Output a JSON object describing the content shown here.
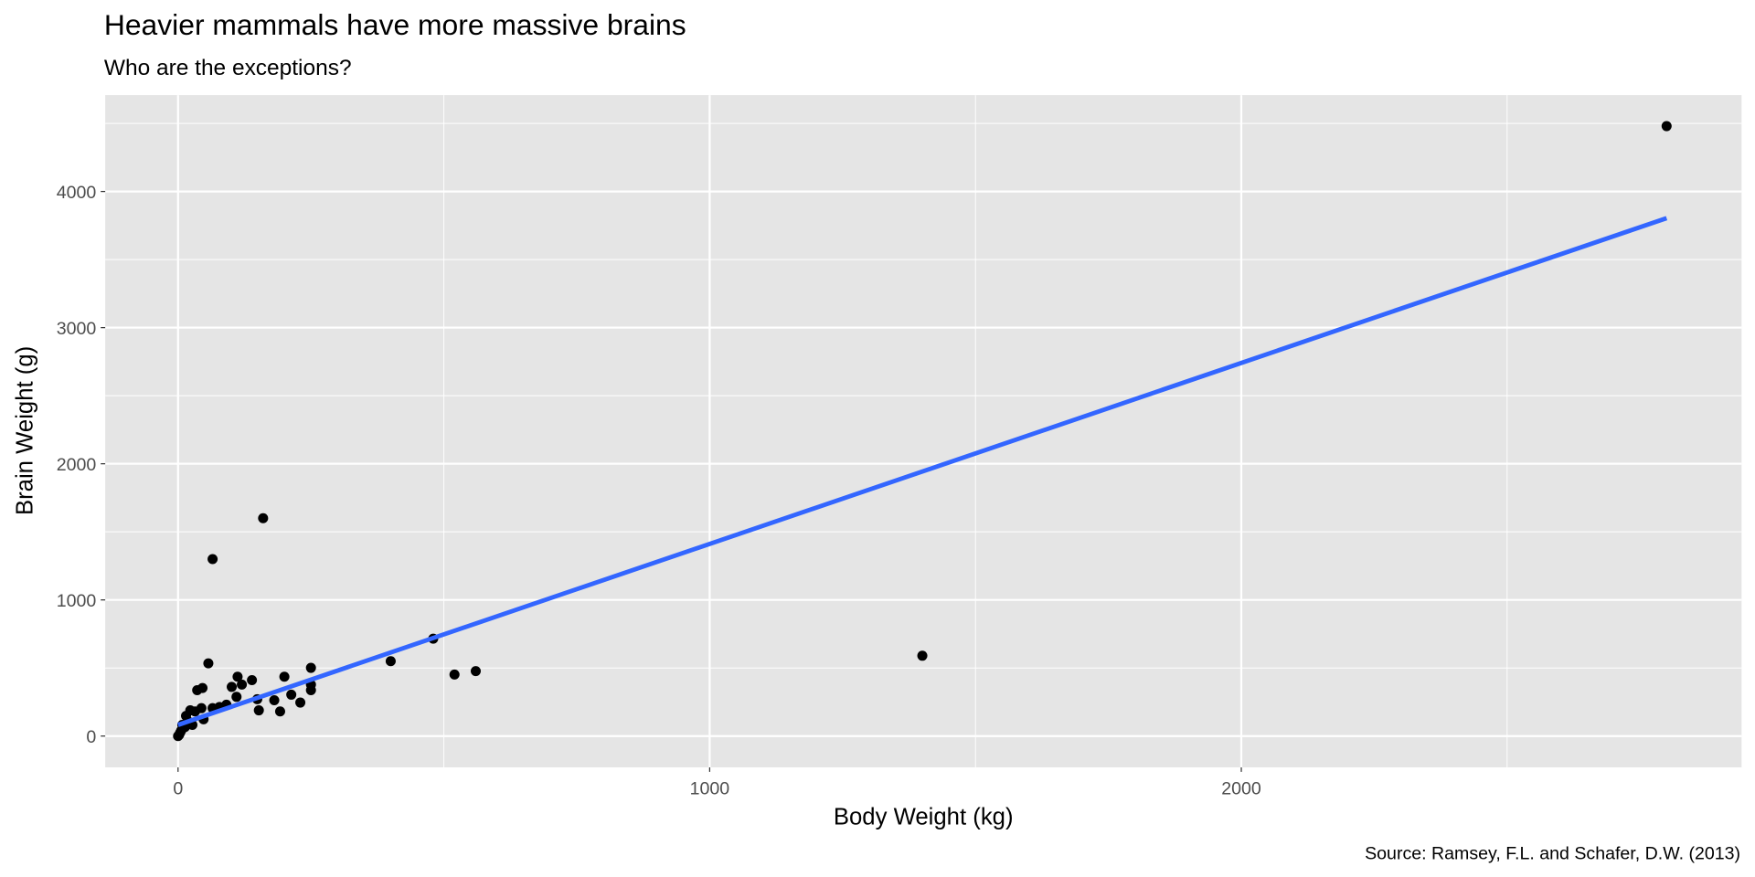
{
  "chart_data": {
    "type": "scatter",
    "title": "Heavier mammals have more massive brains",
    "subtitle": "Who are the exceptions?",
    "x_label": "Body Weight (kg)",
    "y_label": "Brain Weight (g)",
    "caption": "Source: Ramsey, F.L. and Schafer, D.W. (2013)",
    "xlim": [
      -137,
      2941
    ],
    "ylim": [
      -230,
      4708
    ],
    "xticks": [
      0,
      1000,
      2000
    ],
    "yticks": [
      0,
      1000,
      2000,
      3000,
      4000
    ],
    "xminorticks": [
      500,
      1500,
      2500
    ],
    "yminorticks": [
      500,
      1500,
      2500,
      3500,
      4500
    ],
    "grid": true,
    "background": "#e5e5e5",
    "series": [
      {
        "color": "#000000",
        "x": [
          2800,
          1400,
          160,
          65,
          480,
          400,
          520,
          560,
          250,
          250,
          250,
          200,
          213,
          230,
          181,
          192,
          152,
          149,
          139,
          120,
          112,
          110,
          101,
          91,
          78,
          57,
          65,
          46,
          36,
          48,
          44,
          23,
          32,
          15,
          19,
          27,
          8,
          6,
          2,
          0,
          13,
          4
        ],
        "values": [
          4480,
          590,
          1600,
          1300,
          715,
          550,
          452,
          477,
          501,
          378,
          337,
          436,
          304,
          246,
          263,
          181,
          189,
          271,
          411,
          378,
          436,
          288,
          361,
          230,
          214,
          534,
          205,
          353,
          337,
          123,
          205,
          189,
          181,
          148,
          107,
          82,
          82,
          41,
          8,
          0,
          66,
          25
        ]
      }
    ],
    "fit": {
      "color": "#3366FF",
      "x": [
        0,
        2800
      ],
      "values": [
        82,
        3804
      ]
    }
  }
}
